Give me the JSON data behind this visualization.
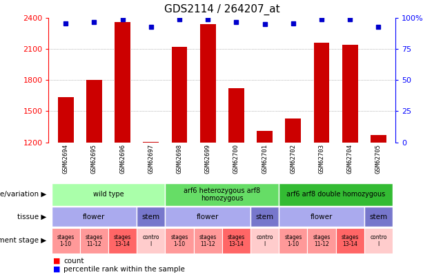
{
  "title": "GDS2114 / 264207_at",
  "samples": [
    "GSM62694",
    "GSM62695",
    "GSM62696",
    "GSM62697",
    "GSM62698",
    "GSM62699",
    "GSM62700",
    "GSM62701",
    "GSM62702",
    "GSM62703",
    "GSM62704",
    "GSM62705"
  ],
  "counts": [
    1638,
    1800,
    2360,
    1205,
    2120,
    2340,
    1720,
    1310,
    1430,
    2160,
    2140,
    1270
  ],
  "percentiles": [
    96,
    97,
    99,
    93,
    99,
    99,
    97,
    95,
    96,
    99,
    99,
    93
  ],
  "ylim_left": [
    1200,
    2400
  ],
  "ylim_right": [
    0,
    100
  ],
  "yticks_left": [
    1200,
    1500,
    1800,
    2100,
    2400
  ],
  "yticks_right": [
    0,
    25,
    50,
    75,
    100
  ],
  "bar_color": "#CC0000",
  "dot_color": "#0000CC",
  "bar_width": 0.55,
  "label_bg_color": "#CCCCCC",
  "genotype_data": [
    {
      "start": 0,
      "end": 3,
      "color": "#AAFFAA",
      "label": "wild type"
    },
    {
      "start": 4,
      "end": 7,
      "color": "#66DD66",
      "label": "arf6 heterozygous arf8\nhomozygous"
    },
    {
      "start": 8,
      "end": 11,
      "color": "#33BB33",
      "label": "arf6 arf8 double homozygous"
    }
  ],
  "tissue_data": [
    {
      "start": 0,
      "end": 2,
      "color": "#AAAAEE",
      "label": "flower"
    },
    {
      "start": 3,
      "end": 3,
      "color": "#7777CC",
      "label": "stem"
    },
    {
      "start": 4,
      "end": 6,
      "color": "#AAAAEE",
      "label": "flower"
    },
    {
      "start": 7,
      "end": 7,
      "color": "#7777CC",
      "label": "stem"
    },
    {
      "start": 8,
      "end": 10,
      "color": "#AAAAEE",
      "label": "flower"
    },
    {
      "start": 11,
      "end": 11,
      "color": "#7777CC",
      "label": "stem"
    }
  ],
  "stage_pattern": [
    {
      "color": "#FF9999",
      "label": "stages\n1-10"
    },
    {
      "color": "#FF9999",
      "label": "stages\n11-12"
    },
    {
      "color": "#FF6666",
      "label": "stages\n13-14"
    },
    {
      "color": "#FFCCCC",
      "label": "contro\nl"
    }
  ],
  "row_labels": [
    "genotype/variation",
    "tissue",
    "development stage"
  ],
  "legend_labels": [
    "count",
    "percentile rank within the sample"
  ]
}
